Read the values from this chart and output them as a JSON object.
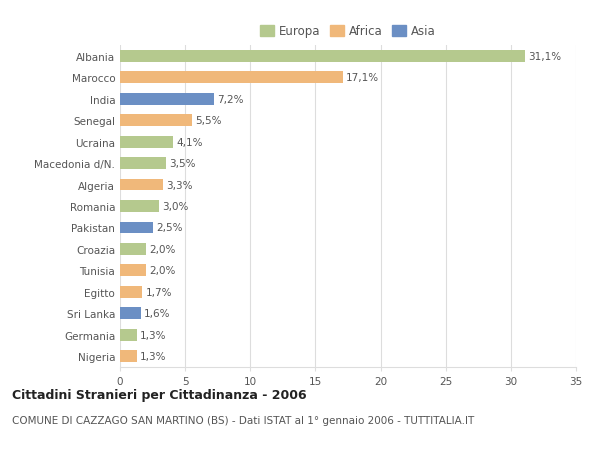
{
  "categories": [
    "Albania",
    "Marocco",
    "India",
    "Senegal",
    "Ucraina",
    "Macedonia d/N.",
    "Algeria",
    "Romania",
    "Pakistan",
    "Croazia",
    "Tunisia",
    "Egitto",
    "Sri Lanka",
    "Germania",
    "Nigeria"
  ],
  "values": [
    31.1,
    17.1,
    7.2,
    5.5,
    4.1,
    3.5,
    3.3,
    3.0,
    2.5,
    2.0,
    2.0,
    1.7,
    1.6,
    1.3,
    1.3
  ],
  "labels": [
    "31,1%",
    "17,1%",
    "7,2%",
    "5,5%",
    "4,1%",
    "3,5%",
    "3,3%",
    "3,0%",
    "2,5%",
    "2,0%",
    "2,0%",
    "1,7%",
    "1,6%",
    "1,3%",
    "1,3%"
  ],
  "continent": [
    "Europa",
    "Africa",
    "Asia",
    "Africa",
    "Europa",
    "Europa",
    "Africa",
    "Europa",
    "Asia",
    "Europa",
    "Africa",
    "Africa",
    "Asia",
    "Europa",
    "Africa"
  ],
  "colors": {
    "Europa": "#b5c98e",
    "Africa": "#f0b87a",
    "Asia": "#6b8fc4"
  },
  "legend_colors": {
    "Europa": "#b5c98e",
    "Africa": "#f0b87a",
    "Asia": "#6b8fc4"
  },
  "xlim": [
    0,
    35
  ],
  "xticks": [
    0,
    5,
    10,
    15,
    20,
    25,
    30,
    35
  ],
  "title": "Cittadini Stranieri per Cittadinanza - 2006",
  "subtitle": "COMUNE DI CAZZAGO SAN MARTINO (BS) - Dati ISTAT al 1° gennaio 2006 - TUTTITALIA.IT",
  "bg_color": "#ffffff",
  "grid_color": "#dddddd",
  "bar_height": 0.55,
  "title_fontsize": 9,
  "subtitle_fontsize": 7.5,
  "label_fontsize": 7.5,
  "tick_fontsize": 7.5,
  "legend_fontsize": 8.5
}
